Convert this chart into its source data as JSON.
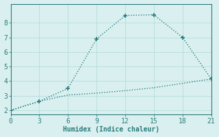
{
  "xlabel": "Humidex (Indice chaleur)",
  "line1_x": [
    0,
    3,
    6,
    9,
    12,
    15,
    18,
    21
  ],
  "line1_y": [
    2.0,
    2.62,
    3.5,
    6.9,
    8.5,
    8.55,
    7.0,
    4.15
  ],
  "line2_x": [
    0,
    3,
    6,
    9,
    12,
    15,
    18,
    21
  ],
  "line2_y": [
    2.0,
    2.62,
    3.05,
    3.18,
    3.35,
    3.55,
    3.85,
    4.15
  ],
  "line_color": "#2a7a7a",
  "bg_color": "#daf0f0",
  "grid_color": "#b8dede",
  "xlim": [
    0,
    21
  ],
  "ylim": [
    1.7,
    9.3
  ],
  "xticks": [
    0,
    3,
    6,
    9,
    12,
    15,
    18,
    21
  ],
  "yticks": [
    2,
    3,
    4,
    5,
    6,
    7,
    8
  ],
  "marker": "+",
  "markersize": 5,
  "linewidth": 1.0,
  "tick_fontsize": 7,
  "xlabel_fontsize": 7
}
